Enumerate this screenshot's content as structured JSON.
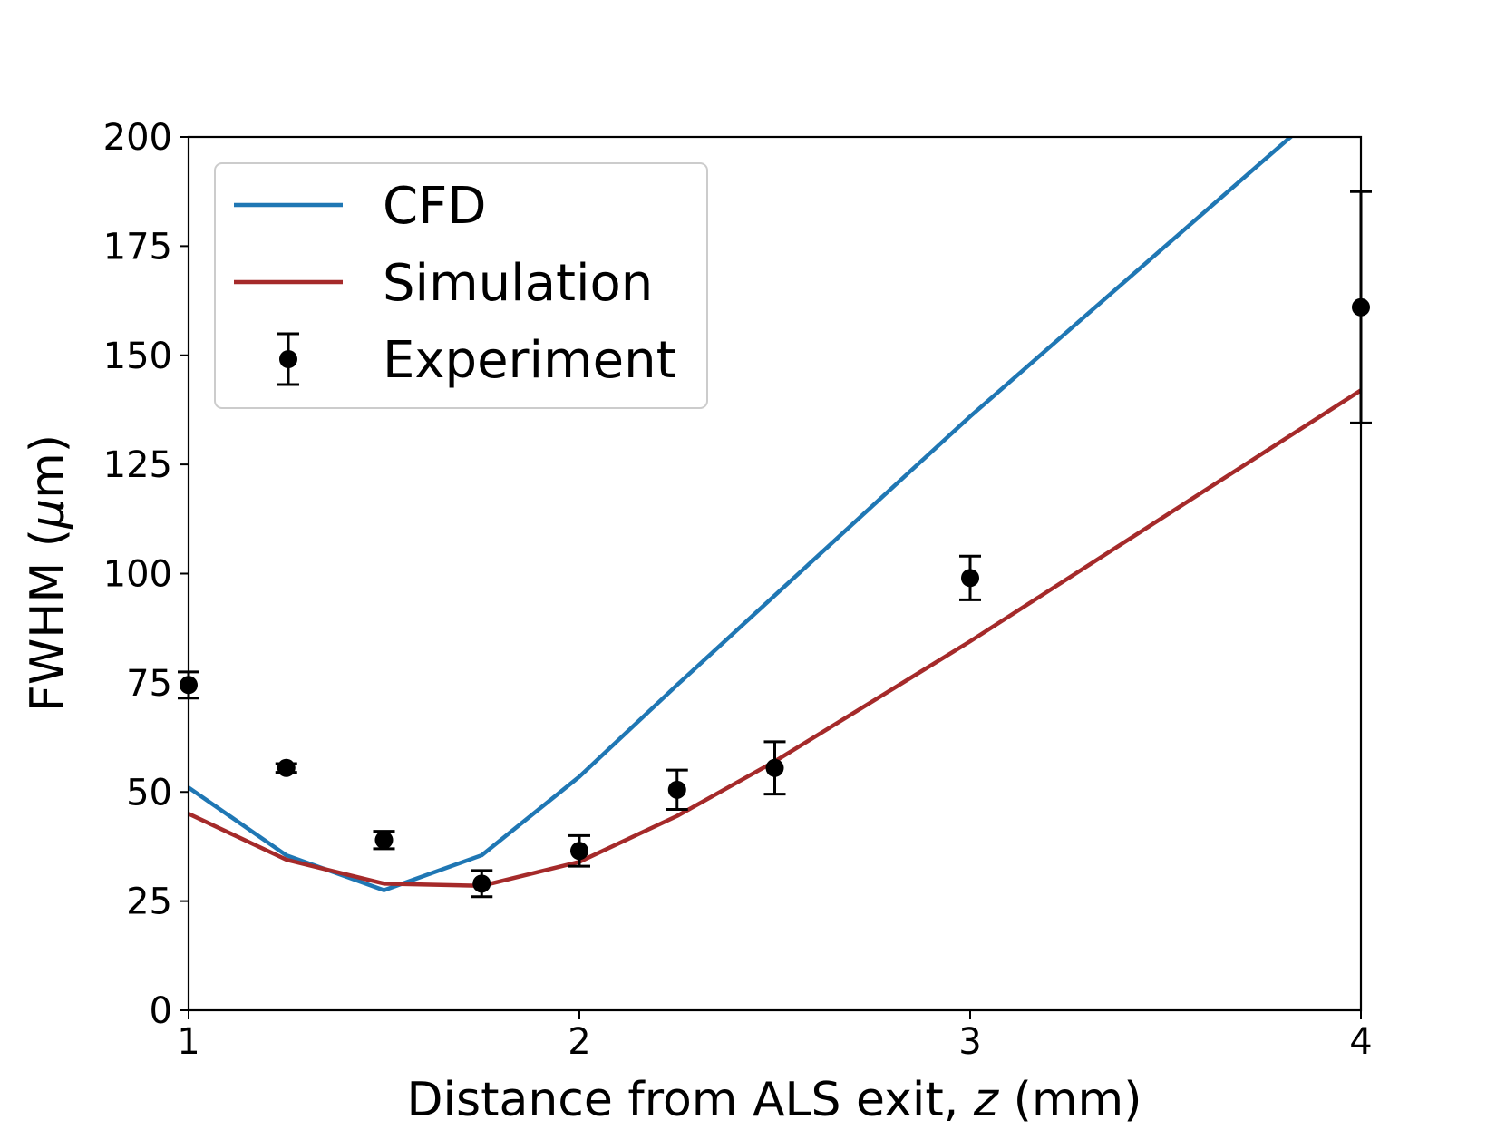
{
  "chart_data": {
    "type": "line",
    "title": "",
    "xlabel": "Distance from ALS exit, z (mm)",
    "xlabel_parts": {
      "prefix": "Distance from ALS exit, ",
      "var": "z",
      "suffix": " (mm)"
    },
    "ylabel": "FWHM (μm)",
    "ylabel_parts": {
      "prefix": "FWHM (",
      "var": "μ",
      "suffix": "m)"
    },
    "xlim": [
      1,
      4
    ],
    "ylim": [
      0,
      200
    ],
    "xticks": [
      1,
      2,
      3,
      4
    ],
    "yticks": [
      0,
      25,
      50,
      75,
      100,
      125,
      150,
      175,
      200
    ],
    "grid": false,
    "legend_position": "top-left",
    "series": [
      {
        "name": "CFD",
        "kind": "line",
        "color": "#1f77b4",
        "x": [
          1.0,
          1.25,
          1.5,
          1.75,
          2.0,
          2.25,
          2.5,
          3.0,
          3.82
        ],
        "y": [
          51,
          35.5,
          27.5,
          35.5,
          53.5,
          74.5,
          95,
          136,
          200
        ]
      },
      {
        "name": "Simulation",
        "kind": "line",
        "color": "#a52a2a",
        "x": [
          1.0,
          1.25,
          1.5,
          1.75,
          2.0,
          2.25,
          2.5,
          3.0,
          4.0
        ],
        "y": [
          45,
          34.5,
          29,
          28.5,
          34,
          44.5,
          57,
          84.5,
          142
        ]
      },
      {
        "name": "Experiment",
        "kind": "errorbar",
        "color": "#000000",
        "x": [
          1.0,
          1.25,
          1.5,
          1.75,
          2.0,
          2.25,
          2.5,
          3.0,
          4.0
        ],
        "y": [
          74.5,
          55.5,
          39,
          29,
          36.5,
          50.5,
          55.5,
          99,
          161
        ],
        "yerr": [
          3,
          1,
          2,
          3,
          3.5,
          4.5,
          6,
          5,
          26.5
        ]
      }
    ]
  }
}
